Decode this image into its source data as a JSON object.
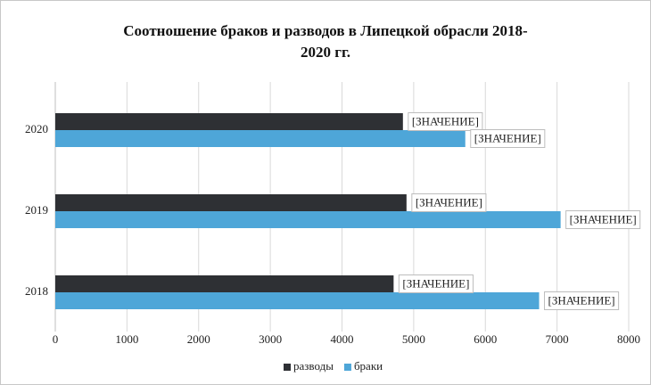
{
  "chart_data": {
    "type": "hbar",
    "title": [
      "Соотношение браков и разводов в Липецкой обрасли 2018-",
      "2020 гг."
    ],
    "categories": [
      "2018",
      "2019",
      "2020"
    ],
    "series": [
      {
        "name": "разводы",
        "color": "#2e3034",
        "values": [
          4720,
          4900,
          4850
        ],
        "value_labels": [
          "[ЗНАЧЕНИЕ]",
          "[ЗНАЧЕНИЕ]",
          "[ЗНАЧЕНИЕ]"
        ]
      },
      {
        "name": "браки",
        "color": "#4ea6d8",
        "values": [
          6750,
          7050,
          5720
        ],
        "value_labels": [
          "[ЗНАЧЕНИЕ]",
          "[ЗНАЧЕНИЕ]",
          "[ЗНАЧЕНИЕ]"
        ]
      }
    ],
    "xlim": [
      0,
      8000
    ],
    "xticks": [
      0,
      1000,
      2000,
      3000,
      4000,
      5000,
      6000,
      7000,
      8000
    ],
    "grid": true,
    "legend": "bottom"
  }
}
